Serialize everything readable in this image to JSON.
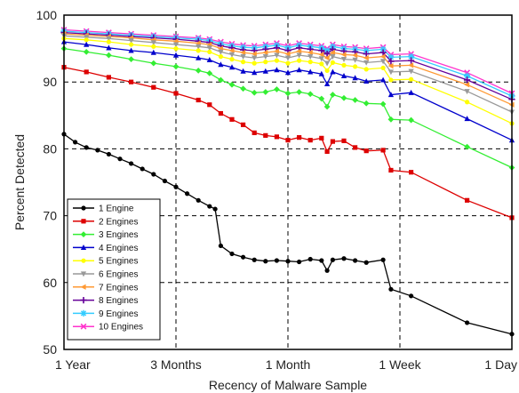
{
  "chart_data": {
    "type": "line",
    "xlabel": "Recency of Malware Sample",
    "ylabel": "Percent Detected",
    "ylim": [
      50,
      100
    ],
    "y_ticks": [
      50,
      60,
      70,
      80,
      90,
      100
    ],
    "x_ticks": [
      {
        "x": 0,
        "label": "1 Year"
      },
      {
        "x": 1,
        "label": "3 Months"
      },
      {
        "x": 2,
        "label": "1 Month"
      },
      {
        "x": 3,
        "label": "1 Week"
      },
      {
        "x": 4,
        "label": "1 Day"
      }
    ],
    "x_range": [
      0,
      4
    ],
    "grid": true,
    "legend_position": "bottom-left",
    "series": [
      {
        "name": "1 Engine",
        "color": "#000000",
        "marker": "circle",
        "points": [
          [
            0,
            82.2
          ],
          [
            0.1,
            81
          ],
          [
            0.2,
            80.2
          ],
          [
            0.3,
            79.8
          ],
          [
            0.4,
            79.2
          ],
          [
            0.5,
            78.5
          ],
          [
            0.6,
            77.8
          ],
          [
            0.7,
            77
          ],
          [
            0.8,
            76.2
          ],
          [
            0.9,
            75.2
          ],
          [
            1.0,
            74.3
          ],
          [
            1.1,
            73.3
          ],
          [
            1.2,
            72.3
          ],
          [
            1.3,
            71.4
          ],
          [
            1.35,
            71
          ],
          [
            1.4,
            65.5
          ],
          [
            1.5,
            64.3
          ],
          [
            1.6,
            63.8
          ],
          [
            1.7,
            63.4
          ],
          [
            1.8,
            63.2
          ],
          [
            1.9,
            63.3
          ],
          [
            2.0,
            63.2
          ],
          [
            2.1,
            63.1
          ],
          [
            2.2,
            63.5
          ],
          [
            2.3,
            63.3
          ],
          [
            2.35,
            61.8
          ],
          [
            2.4,
            63.4
          ],
          [
            2.5,
            63.6
          ],
          [
            2.6,
            63.3
          ],
          [
            2.7,
            63
          ],
          [
            2.85,
            63.4
          ],
          [
            2.92,
            59
          ],
          [
            3.1,
            58
          ],
          [
            3.6,
            54
          ],
          [
            4.0,
            52.3
          ]
        ]
      },
      {
        "name": "2 Engines",
        "color": "#dd0000",
        "marker": "square",
        "points": [
          [
            0,
            92.2
          ],
          [
            0.2,
            91.5
          ],
          [
            0.4,
            90.7
          ],
          [
            0.6,
            90
          ],
          [
            0.8,
            89.2
          ],
          [
            1.0,
            88.3
          ],
          [
            1.2,
            87.3
          ],
          [
            1.3,
            86.6
          ],
          [
            1.4,
            85.3
          ],
          [
            1.5,
            84.4
          ],
          [
            1.6,
            83.6
          ],
          [
            1.7,
            82.4
          ],
          [
            1.8,
            82
          ],
          [
            1.9,
            81.8
          ],
          [
            2.0,
            81.3
          ],
          [
            2.1,
            81.7
          ],
          [
            2.2,
            81.3
          ],
          [
            2.3,
            81.6
          ],
          [
            2.35,
            79.6
          ],
          [
            2.4,
            81.1
          ],
          [
            2.5,
            81.2
          ],
          [
            2.6,
            80.2
          ],
          [
            2.7,
            79.7
          ],
          [
            2.85,
            79.8
          ],
          [
            2.92,
            76.8
          ],
          [
            3.1,
            76.5
          ],
          [
            3.6,
            72.3
          ],
          [
            4.0,
            69.7
          ]
        ]
      },
      {
        "name": "3 Engines",
        "color": "#33ee33",
        "marker": "diamond",
        "points": [
          [
            0,
            95
          ],
          [
            0.2,
            94.5
          ],
          [
            0.4,
            94
          ],
          [
            0.6,
            93.4
          ],
          [
            0.8,
            92.8
          ],
          [
            1.0,
            92.3
          ],
          [
            1.2,
            91.7
          ],
          [
            1.3,
            91.3
          ],
          [
            1.4,
            90.3
          ],
          [
            1.5,
            89.6
          ],
          [
            1.6,
            89
          ],
          [
            1.7,
            88.4
          ],
          [
            1.8,
            88.5
          ],
          [
            1.9,
            88.9
          ],
          [
            2.0,
            88.3
          ],
          [
            2.1,
            88.5
          ],
          [
            2.2,
            88.2
          ],
          [
            2.3,
            87.5
          ],
          [
            2.35,
            86.3
          ],
          [
            2.4,
            88.1
          ],
          [
            2.5,
            87.6
          ],
          [
            2.6,
            87.3
          ],
          [
            2.7,
            86.8
          ],
          [
            2.85,
            86.7
          ],
          [
            2.92,
            84.4
          ],
          [
            3.1,
            84.3
          ],
          [
            3.6,
            80.3
          ],
          [
            4.0,
            77.2
          ]
        ]
      },
      {
        "name": "4 Engines",
        "color": "#0000cc",
        "marker": "triangle-up",
        "points": [
          [
            0,
            96
          ],
          [
            0.2,
            95.6
          ],
          [
            0.4,
            95.1
          ],
          [
            0.6,
            94.7
          ],
          [
            0.8,
            94.4
          ],
          [
            1.0,
            94
          ],
          [
            1.2,
            93.6
          ],
          [
            1.3,
            93.3
          ],
          [
            1.4,
            92.6
          ],
          [
            1.5,
            92.2
          ],
          [
            1.6,
            91.6
          ],
          [
            1.7,
            91.4
          ],
          [
            1.8,
            91.6
          ],
          [
            1.9,
            91.8
          ],
          [
            2.0,
            91.4
          ],
          [
            2.1,
            91.8
          ],
          [
            2.2,
            91.5
          ],
          [
            2.3,
            91.2
          ],
          [
            2.35,
            89.7
          ],
          [
            2.4,
            91.5
          ],
          [
            2.5,
            90.9
          ],
          [
            2.6,
            90.6
          ],
          [
            2.7,
            90.1
          ],
          [
            2.85,
            90.3
          ],
          [
            2.92,
            88.1
          ],
          [
            3.1,
            88.4
          ],
          [
            3.6,
            84.5
          ],
          [
            4.0,
            81.3
          ]
        ]
      },
      {
        "name": "5 Engines",
        "color": "#ffff00",
        "marker": "circle",
        "points": [
          [
            0,
            96.5
          ],
          [
            0.2,
            96.3
          ],
          [
            0.4,
            96
          ],
          [
            0.6,
            95.6
          ],
          [
            0.8,
            95.3
          ],
          [
            1.0,
            95
          ],
          [
            1.2,
            94.7
          ],
          [
            1.3,
            94.5
          ],
          [
            1.4,
            93.8
          ],
          [
            1.5,
            93.4
          ],
          [
            1.6,
            93
          ],
          [
            1.7,
            92.8
          ],
          [
            1.8,
            93
          ],
          [
            1.9,
            93.2
          ],
          [
            2.0,
            92.8
          ],
          [
            2.1,
            93.2
          ],
          [
            2.2,
            93
          ],
          [
            2.3,
            92.7
          ],
          [
            2.35,
            91.7
          ],
          [
            2.4,
            92.9
          ],
          [
            2.5,
            92.5
          ],
          [
            2.6,
            92.3
          ],
          [
            2.7,
            91.9
          ],
          [
            2.85,
            92.1
          ],
          [
            2.92,
            90.3
          ],
          [
            3.1,
            90.4
          ],
          [
            3.6,
            87
          ],
          [
            4.0,
            83.8
          ]
        ]
      },
      {
        "name": "6 Engines",
        "color": "#999999",
        "marker": "triangle-down",
        "points": [
          [
            0,
            96.9
          ],
          [
            0.2,
            96.7
          ],
          [
            0.4,
            96.5
          ],
          [
            0.6,
            96.2
          ],
          [
            0.8,
            95.9
          ],
          [
            1.0,
            95.6
          ],
          [
            1.2,
            95.3
          ],
          [
            1.3,
            95.1
          ],
          [
            1.4,
            94.5
          ],
          [
            1.5,
            94.1
          ],
          [
            1.6,
            93.8
          ],
          [
            1.7,
            93.6
          ],
          [
            1.8,
            93.8
          ],
          [
            1.9,
            94
          ],
          [
            2.0,
            93.6
          ],
          [
            2.1,
            94
          ],
          [
            2.2,
            93.8
          ],
          [
            2.3,
            93.5
          ],
          [
            2.35,
            92.8
          ],
          [
            2.4,
            93.8
          ],
          [
            2.5,
            93.4
          ],
          [
            2.6,
            93.3
          ],
          [
            2.7,
            92.9
          ],
          [
            2.85,
            93.1
          ],
          [
            2.92,
            91.5
          ],
          [
            3.1,
            91.6
          ],
          [
            3.6,
            88.6
          ],
          [
            4.0,
            85.5
          ]
        ]
      },
      {
        "name": "7 Engines",
        "color": "#ff9933",
        "marker": "triangle-left",
        "points": [
          [
            0,
            97.2
          ],
          [
            0.2,
            97
          ],
          [
            0.4,
            96.8
          ],
          [
            0.6,
            96.6
          ],
          [
            0.8,
            96.3
          ],
          [
            1.0,
            96.1
          ],
          [
            1.2,
            95.8
          ],
          [
            1.3,
            95.6
          ],
          [
            1.4,
            95
          ],
          [
            1.5,
            94.7
          ],
          [
            1.6,
            94.4
          ],
          [
            1.7,
            94.2
          ],
          [
            1.8,
            94.4
          ],
          [
            1.9,
            94.6
          ],
          [
            2.0,
            94.2
          ],
          [
            2.1,
            94.6
          ],
          [
            2.2,
            94.4
          ],
          [
            2.3,
            94.1
          ],
          [
            2.35,
            93.6
          ],
          [
            2.4,
            94.4
          ],
          [
            2.5,
            94.1
          ],
          [
            2.6,
            94
          ],
          [
            2.7,
            93.6
          ],
          [
            2.85,
            93.8
          ],
          [
            2.92,
            92.4
          ],
          [
            3.1,
            92.5
          ],
          [
            3.6,
            89.6
          ],
          [
            4.0,
            86.6
          ]
        ]
      },
      {
        "name": "8 Engines",
        "color": "#660099",
        "marker": "plus",
        "points": [
          [
            0,
            97.4
          ],
          [
            0.2,
            97.2
          ],
          [
            0.4,
            97
          ],
          [
            0.6,
            96.8
          ],
          [
            0.8,
            96.6
          ],
          [
            1.0,
            96.4
          ],
          [
            1.2,
            96.1
          ],
          [
            1.3,
            95.9
          ],
          [
            1.4,
            95.4
          ],
          [
            1.5,
            95.1
          ],
          [
            1.6,
            94.8
          ],
          [
            1.7,
            94.7
          ],
          [
            1.8,
            94.9
          ],
          [
            1.9,
            95.1
          ],
          [
            2.0,
            94.7
          ],
          [
            2.1,
            95.1
          ],
          [
            2.2,
            94.9
          ],
          [
            2.3,
            94.7
          ],
          [
            2.35,
            94.2
          ],
          [
            2.4,
            94.9
          ],
          [
            2.5,
            94.6
          ],
          [
            2.6,
            94.5
          ],
          [
            2.7,
            94.2
          ],
          [
            2.85,
            94.4
          ],
          [
            2.92,
            93.1
          ],
          [
            3.1,
            93.2
          ],
          [
            3.6,
            90.3
          ],
          [
            4.0,
            87.4
          ]
        ]
      },
      {
        "name": "9 Engines",
        "color": "#33ccff",
        "marker": "star",
        "points": [
          [
            0,
            97.6
          ],
          [
            0.2,
            97.4
          ],
          [
            0.4,
            97.2
          ],
          [
            0.6,
            97
          ],
          [
            0.8,
            96.8
          ],
          [
            1.0,
            96.6
          ],
          [
            1.2,
            96.4
          ],
          [
            1.3,
            96.2
          ],
          [
            1.4,
            95.7
          ],
          [
            1.5,
            95.4
          ],
          [
            1.6,
            95.2
          ],
          [
            1.7,
            95.1
          ],
          [
            1.8,
            95.3
          ],
          [
            1.9,
            95.5
          ],
          [
            2.0,
            95.1
          ],
          [
            2.1,
            95.5
          ],
          [
            2.2,
            95.3
          ],
          [
            2.3,
            95.1
          ],
          [
            2.35,
            94.7
          ],
          [
            2.4,
            95.3
          ],
          [
            2.5,
            95
          ],
          [
            2.6,
            94.9
          ],
          [
            2.7,
            94.7
          ],
          [
            2.85,
            94.9
          ],
          [
            2.92,
            93.7
          ],
          [
            3.1,
            93.8
          ],
          [
            3.6,
            90.9
          ],
          [
            4.0,
            87.9
          ]
        ]
      },
      {
        "name": "10 Engines",
        "color": "#ff33cc",
        "marker": "cross",
        "points": [
          [
            0,
            97.8
          ],
          [
            0.2,
            97.6
          ],
          [
            0.4,
            97.4
          ],
          [
            0.6,
            97.2
          ],
          [
            0.8,
            97
          ],
          [
            1.0,
            96.8
          ],
          [
            1.2,
            96.6
          ],
          [
            1.3,
            96.4
          ],
          [
            1.4,
            96
          ],
          [
            1.5,
            95.7
          ],
          [
            1.6,
            95.5
          ],
          [
            1.7,
            95.4
          ],
          [
            1.8,
            95.6
          ],
          [
            1.9,
            95.8
          ],
          [
            2.0,
            95.4
          ],
          [
            2.1,
            95.8
          ],
          [
            2.2,
            95.6
          ],
          [
            2.3,
            95.4
          ],
          [
            2.35,
            95
          ],
          [
            2.4,
            95.6
          ],
          [
            2.5,
            95.3
          ],
          [
            2.6,
            95.2
          ],
          [
            2.7,
            95
          ],
          [
            2.85,
            95.2
          ],
          [
            2.92,
            94.1
          ],
          [
            3.1,
            94.2
          ],
          [
            3.6,
            91.4
          ],
          [
            4.0,
            88.3
          ]
        ]
      }
    ]
  }
}
